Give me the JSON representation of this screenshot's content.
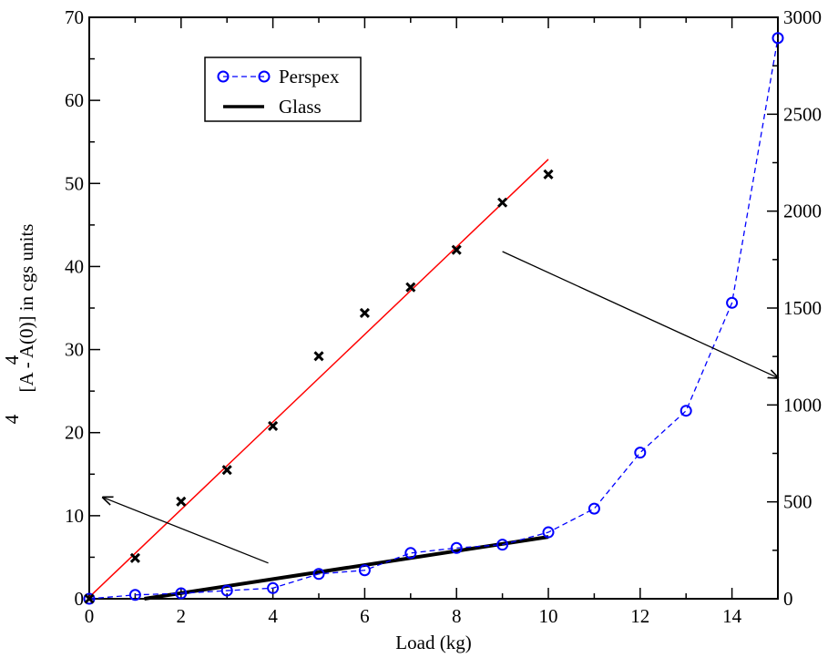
{
  "chart_data": {
    "type": "scatter",
    "xlabel": "Load  (kg)",
    "ylabel_left": {
      "main": "[A  - A(0)] in cgs units",
      "superscripts": [
        "4",
        "4"
      ]
    },
    "xlim": [
      0,
      15
    ],
    "ylim_left": [
      0,
      70
    ],
    "ylim_right": [
      0,
      3000
    ],
    "x_ticks": [
      0,
      2,
      4,
      6,
      8,
      10,
      12,
      14
    ],
    "y_left_ticks": [
      0,
      10,
      20,
      30,
      40,
      50,
      60,
      70
    ],
    "y_right_ticks": [
      0,
      500,
      1000,
      1500,
      2000,
      2500,
      3000
    ],
    "grid": false,
    "legend_position": "top-left",
    "legend": [
      {
        "label": "Perspex",
        "style": "blue dashed line with open circles"
      },
      {
        "label": "Glass",
        "style": "black solid line"
      }
    ],
    "series": [
      {
        "name": "Perspex",
        "axis": "right",
        "color": "#0000ff",
        "marker": "open-circle",
        "line": "dashed",
        "x": [
          0,
          1,
          2,
          3,
          4,
          5,
          6,
          7,
          8,
          9,
          10,
          11,
          12,
          13,
          14,
          15
        ],
        "y": [
          0,
          20,
          28,
          42,
          55,
          128,
          147,
          236,
          262,
          279,
          343,
          465,
          754,
          970,
          1527,
          2893
        ]
      },
      {
        "name": "Glass",
        "axis": "left",
        "color": "#000000",
        "marker": "cross",
        "line": "none",
        "x": [
          0,
          1,
          2,
          3,
          4,
          5,
          6,
          7,
          8,
          9,
          10
        ],
        "y": [
          0,
          4.9,
          11.7,
          15.5,
          20.8,
          29.2,
          34.4,
          37.5,
          42.0,
          47.7,
          51.1
        ]
      }
    ],
    "fit_lines": [
      {
        "axis": "left",
        "color": "#ff0000",
        "width": "thin",
        "x": [
          0,
          10
        ],
        "y": [
          0.2,
          52.9
        ]
      },
      {
        "axis": "right",
        "color": "#000000",
        "width": "thick",
        "x": [
          1.2,
          10
        ],
        "y": [
          0,
          319
        ]
      }
    ],
    "annotations": [
      {
        "type": "arrow",
        "meaning": "points to left axis",
        "from": {
          "axis": "left",
          "x": 3.9,
          "y": 4.3
        },
        "to": {
          "axis": "left",
          "x": 0.3,
          "y": 12.2
        }
      },
      {
        "type": "arrow",
        "meaning": "points to right axis",
        "from": {
          "axis": "left",
          "x": 9.0,
          "y": 41.8
        },
        "to": {
          "axis": "left",
          "x": 15.0,
          "y": 26.6
        }
      }
    ]
  }
}
